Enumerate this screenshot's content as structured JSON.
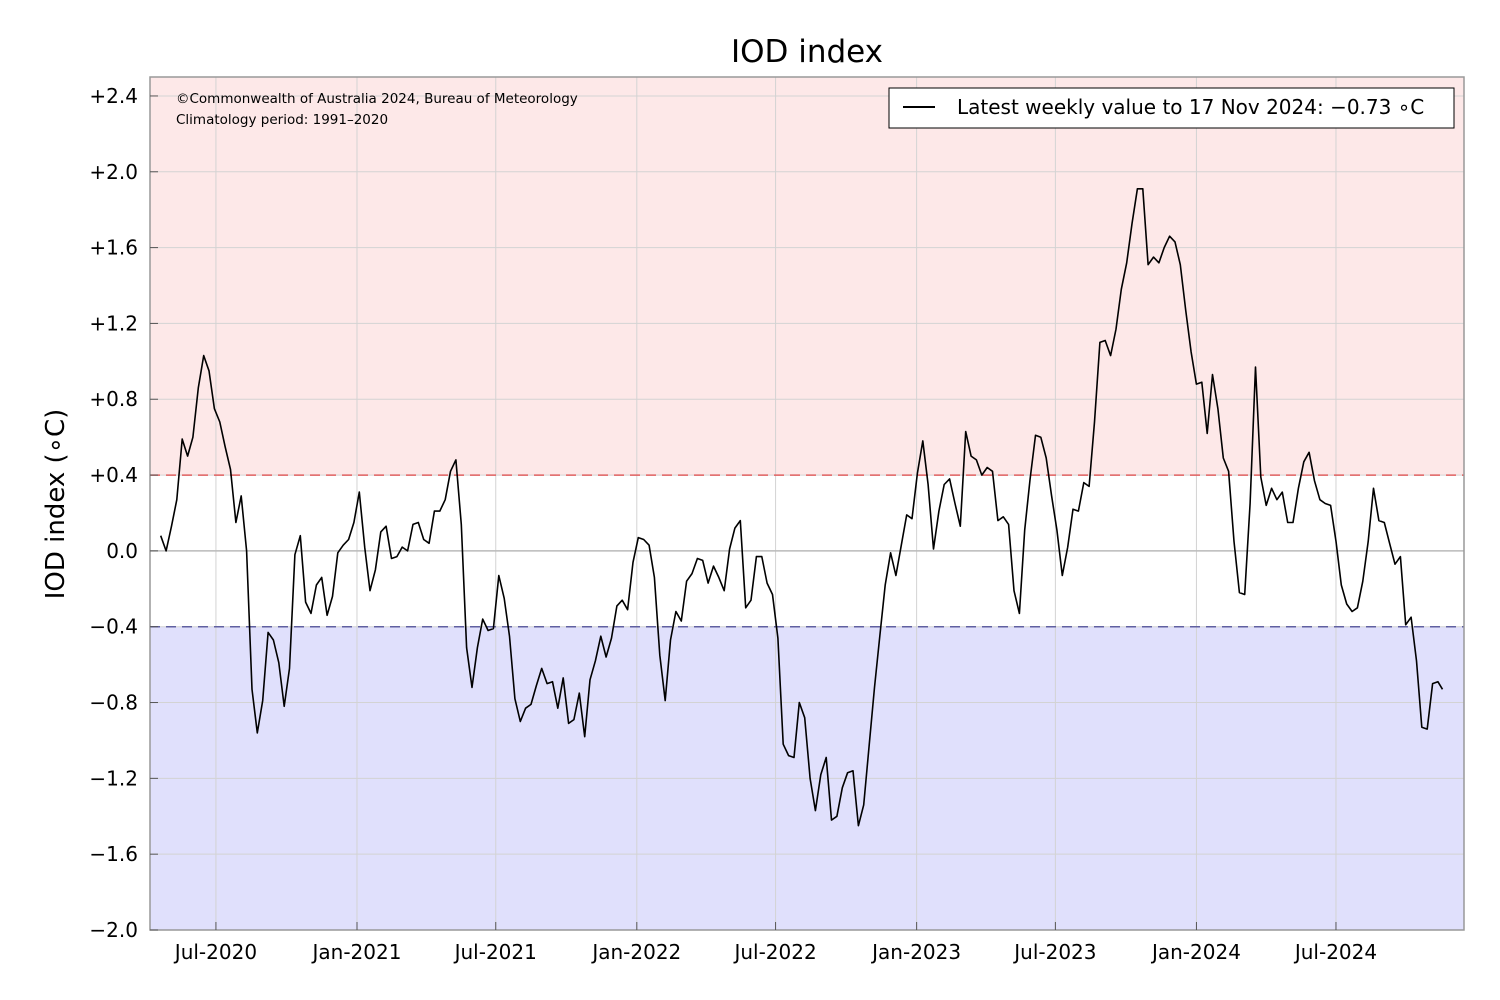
{
  "chart_data": {
    "type": "line",
    "title": "IOD index",
    "ylabel": "IOD index (∘C)",
    "xlabel": "",
    "ylim": [
      -2.0,
      2.5
    ],
    "xlim": [
      "2020-04-06",
      "2024-12-15"
    ],
    "y_ticks": [
      2.4,
      2.0,
      1.6,
      1.2,
      0.8,
      0.4,
      0.0,
      -0.4,
      -0.8,
      -1.2,
      -1.6,
      -2.0
    ],
    "y_tick_labels": [
      "+2.4",
      "+2.0",
      "+1.6",
      "+1.2",
      "+0.8",
      "+0.4",
      "0.0",
      "−0.4",
      "−0.8",
      "−1.2",
      "−1.6",
      "−2.0"
    ],
    "x_ticks": [
      "2020-07-01",
      "2021-01-01",
      "2021-07-01",
      "2022-01-01",
      "2022-07-01",
      "2023-01-01",
      "2023-07-01",
      "2024-01-01",
      "2024-07-01"
    ],
    "x_tick_labels": [
      "Jul-2020",
      "Jan-2021",
      "Jul-2021",
      "Jan-2022",
      "Jul-2022",
      "Jan-2023",
      "Jul-2023",
      "Jan-2024",
      "Jul-2024"
    ],
    "grid": true,
    "positive_threshold": 0.4,
    "negative_threshold": -0.4,
    "colors": {
      "positive_zone": "#fde8e8",
      "negative_zone": "#e0e0fc",
      "positive_line": "#e06060",
      "negative_line": "#6060a0",
      "series": "#000000",
      "grid": "#d3d3d3",
      "axes": "#999999"
    },
    "annotations": {
      "copyright": "©Commonwealth of Australia 2024, Bureau of Meteorology",
      "climatology": "Climatology period: 1991–2020"
    },
    "legend": {
      "placement": "top-right",
      "entries": [
        "Latest weekly value to 17 Nov 2024: −0.73 ∘C"
      ]
    },
    "series": [
      {
        "x": [
          "2020-04-20",
          "2020-04-27",
          "2020-05-04",
          "2020-05-11",
          "2020-05-18",
          "2020-05-25",
          "2020-06-01",
          "2020-06-08",
          "2020-06-15",
          "2020-06-22",
          "2020-06-29",
          "2020-07-06",
          "2020-07-13",
          "2020-07-20",
          "2020-07-27",
          "2020-08-03",
          "2020-08-10",
          "2020-08-17",
          "2020-08-24",
          "2020-08-31",
          "2020-09-07",
          "2020-09-14",
          "2020-09-21",
          "2020-09-28",
          "2020-10-05",
          "2020-10-12",
          "2020-10-19",
          "2020-10-26",
          "2020-11-02",
          "2020-11-09",
          "2020-11-16",
          "2020-11-23",
          "2020-11-30",
          "2020-12-07",
          "2020-12-14",
          "2020-12-21",
          "2020-12-28",
          "2021-01-04",
          "2021-01-11",
          "2021-01-18",
          "2021-01-25",
          "2021-02-01",
          "2021-02-08",
          "2021-02-15",
          "2021-02-22",
          "2021-03-01",
          "2021-03-08",
          "2021-03-15",
          "2021-03-22",
          "2021-03-29",
          "2021-04-05",
          "2021-04-12",
          "2021-04-19",
          "2021-04-26",
          "2021-05-03",
          "2021-05-10",
          "2021-05-17",
          "2021-05-24",
          "2021-05-31",
          "2021-06-07",
          "2021-06-14",
          "2021-06-21",
          "2021-06-28",
          "2021-07-05",
          "2021-07-12",
          "2021-07-19",
          "2021-07-26",
          "2021-08-02",
          "2021-08-09",
          "2021-08-16",
          "2021-08-23",
          "2021-08-30",
          "2021-09-06",
          "2021-09-13",
          "2021-09-20",
          "2021-09-27",
          "2021-10-04",
          "2021-10-11",
          "2021-10-18",
          "2021-10-25",
          "2021-11-01",
          "2021-11-08",
          "2021-11-15",
          "2021-11-22",
          "2021-11-29",
          "2021-12-06",
          "2021-12-13",
          "2021-12-20",
          "2021-12-27",
          "2022-01-03",
          "2022-01-10",
          "2022-01-17",
          "2022-01-24",
          "2022-01-31",
          "2022-02-07",
          "2022-02-14",
          "2022-02-21",
          "2022-02-28",
          "2022-03-07",
          "2022-03-14",
          "2022-03-21",
          "2022-03-28",
          "2022-04-04",
          "2022-04-11",
          "2022-04-18",
          "2022-04-25",
          "2022-05-02",
          "2022-05-09",
          "2022-05-16",
          "2022-05-23",
          "2022-05-30",
          "2022-06-06",
          "2022-06-13",
          "2022-06-20",
          "2022-06-27",
          "2022-07-04",
          "2022-07-11",
          "2022-07-18",
          "2022-07-25",
          "2022-08-01",
          "2022-08-08",
          "2022-08-15",
          "2022-08-22",
          "2022-08-29",
          "2022-09-05",
          "2022-09-12",
          "2022-09-19",
          "2022-09-26",
          "2022-10-03",
          "2022-10-10",
          "2022-10-17",
          "2022-10-24",
          "2022-10-31",
          "2022-11-07",
          "2022-11-14",
          "2022-11-21",
          "2022-11-28",
          "2022-12-05",
          "2022-12-12",
          "2022-12-19",
          "2022-12-26",
          "2023-01-02",
          "2023-01-09",
          "2023-01-16",
          "2023-01-23",
          "2023-01-30",
          "2023-02-06",
          "2023-02-13",
          "2023-02-20",
          "2023-02-27",
          "2023-03-06",
          "2023-03-13",
          "2023-03-20",
          "2023-03-27",
          "2023-04-03",
          "2023-04-10",
          "2023-04-17",
          "2023-04-24",
          "2023-05-01",
          "2023-05-08",
          "2023-05-15",
          "2023-05-22",
          "2023-05-29",
          "2023-06-05",
          "2023-06-12",
          "2023-06-19",
          "2023-06-26",
          "2023-07-03",
          "2023-07-10",
          "2023-07-17",
          "2023-07-24",
          "2023-07-31",
          "2023-08-07",
          "2023-08-14",
          "2023-08-21",
          "2023-08-28",
          "2023-09-04",
          "2023-09-11",
          "2023-09-18",
          "2023-09-25",
          "2023-10-02",
          "2023-10-09",
          "2023-10-16",
          "2023-10-23",
          "2023-10-30",
          "2023-11-06",
          "2023-11-13",
          "2023-11-20",
          "2023-11-27",
          "2023-12-04",
          "2023-12-11",
          "2023-12-18",
          "2023-12-25",
          "2024-01-01",
          "2024-01-08",
          "2024-01-15",
          "2024-01-22",
          "2024-01-29",
          "2024-02-05",
          "2024-02-12",
          "2024-02-19",
          "2024-02-26",
          "2024-03-04",
          "2024-03-11",
          "2024-03-18",
          "2024-03-25",
          "2024-04-01",
          "2024-04-08",
          "2024-04-15",
          "2024-04-22",
          "2024-04-29",
          "2024-05-06",
          "2024-05-13",
          "2024-05-20",
          "2024-05-27",
          "2024-06-03",
          "2024-06-10",
          "2024-06-17",
          "2024-06-24",
          "2024-07-01",
          "2024-07-08",
          "2024-07-15",
          "2024-07-22",
          "2024-07-29",
          "2024-08-05",
          "2024-08-12",
          "2024-08-19",
          "2024-08-26",
          "2024-09-02",
          "2024-09-09",
          "2024-09-16",
          "2024-09-23",
          "2024-09-30",
          "2024-10-07",
          "2024-10-14",
          "2024-10-21",
          "2024-10-28",
          "2024-11-04",
          "2024-11-11",
          "2024-11-17"
        ],
        "values": [
          0.08,
          0.0,
          0.13,
          0.27,
          0.59,
          0.5,
          0.6,
          0.86,
          1.03,
          0.95,
          0.75,
          0.68,
          0.55,
          0.43,
          0.15,
          0.29,
          0.0,
          -0.73,
          -0.96,
          -0.79,
          -0.43,
          -0.47,
          -0.59,
          -0.82,
          -0.62,
          -0.02,
          0.08,
          -0.27,
          -0.33,
          -0.18,
          -0.14,
          -0.34,
          -0.24,
          -0.01,
          0.03,
          0.06,
          0.15,
          0.31,
          0.02,
          -0.21,
          -0.1,
          0.1,
          0.13,
          -0.04,
          -0.03,
          0.02,
          0.0,
          0.14,
          0.15,
          0.06,
          0.04,
          0.21,
          0.21,
          0.27,
          0.42,
          0.48,
          0.14,
          -0.51,
          -0.72,
          -0.51,
          -0.36,
          -0.42,
          -0.41,
          -0.13,
          -0.25,
          -0.45,
          -0.78,
          -0.9,
          -0.83,
          -0.81,
          -0.71,
          -0.62,
          -0.7,
          -0.69,
          -0.83,
          -0.67,
          -0.91,
          -0.89,
          -0.75,
          -0.98,
          -0.68,
          -0.58,
          -0.45,
          -0.56,
          -0.46,
          -0.29,
          -0.26,
          -0.31,
          -0.06,
          0.07,
          0.06,
          0.03,
          -0.14,
          -0.55,
          -0.79,
          -0.47,
          -0.32,
          -0.37,
          -0.16,
          -0.12,
          -0.04,
          -0.05,
          -0.17,
          -0.08,
          -0.14,
          -0.21,
          0.01,
          0.12,
          0.16,
          -0.3,
          -0.26,
          -0.03,
          -0.03,
          -0.17,
          -0.23,
          -0.46,
          -1.02,
          -1.08,
          -1.09,
          -0.8,
          -0.88,
          -1.2,
          -1.37,
          -1.18,
          -1.09,
          -1.42,
          -1.4,
          -1.25,
          -1.17,
          -1.16,
          -1.45,
          -1.34,
          -1.03,
          -0.72,
          -0.45,
          -0.18,
          -0.01,
          -0.13,
          0.03,
          0.19,
          0.17,
          0.41,
          0.58,
          0.35,
          0.01,
          0.21,
          0.35,
          0.38,
          0.25,
          0.13,
          0.63,
          0.5,
          0.48,
          0.4,
          0.44,
          0.42,
          0.16,
          0.18,
          0.14,
          -0.21,
          -0.33,
          0.11,
          0.38,
          0.61,
          0.6,
          0.49,
          0.29,
          0.11,
          -0.13,
          0.02,
          0.22,
          0.21,
          0.36,
          0.34,
          0.68,
          1.1,
          1.11,
          1.03,
          1.17,
          1.38,
          1.52,
          1.73,
          1.91,
          1.91,
          1.51,
          1.55,
          1.52,
          1.6,
          1.66,
          1.63,
          1.51,
          1.27,
          1.05,
          0.88,
          0.89,
          0.62,
          0.93,
          0.75,
          0.49,
          0.42,
          0.05,
          -0.22,
          -0.23,
          0.25,
          0.97,
          0.39,
          0.24,
          0.33,
          0.27,
          0.31,
          0.15,
          0.15,
          0.33,
          0.47,
          0.52,
          0.37,
          0.27,
          0.25,
          0.24,
          0.05,
          -0.18,
          -0.28,
          -0.32,
          -0.3,
          -0.16,
          0.05,
          0.33,
          0.16,
          0.15,
          0.04,
          -0.07,
          -0.03,
          -0.39,
          -0.35,
          -0.58,
          -0.93,
          -0.94,
          -0.7,
          -0.69,
          -0.73
        ]
      }
    ]
  }
}
